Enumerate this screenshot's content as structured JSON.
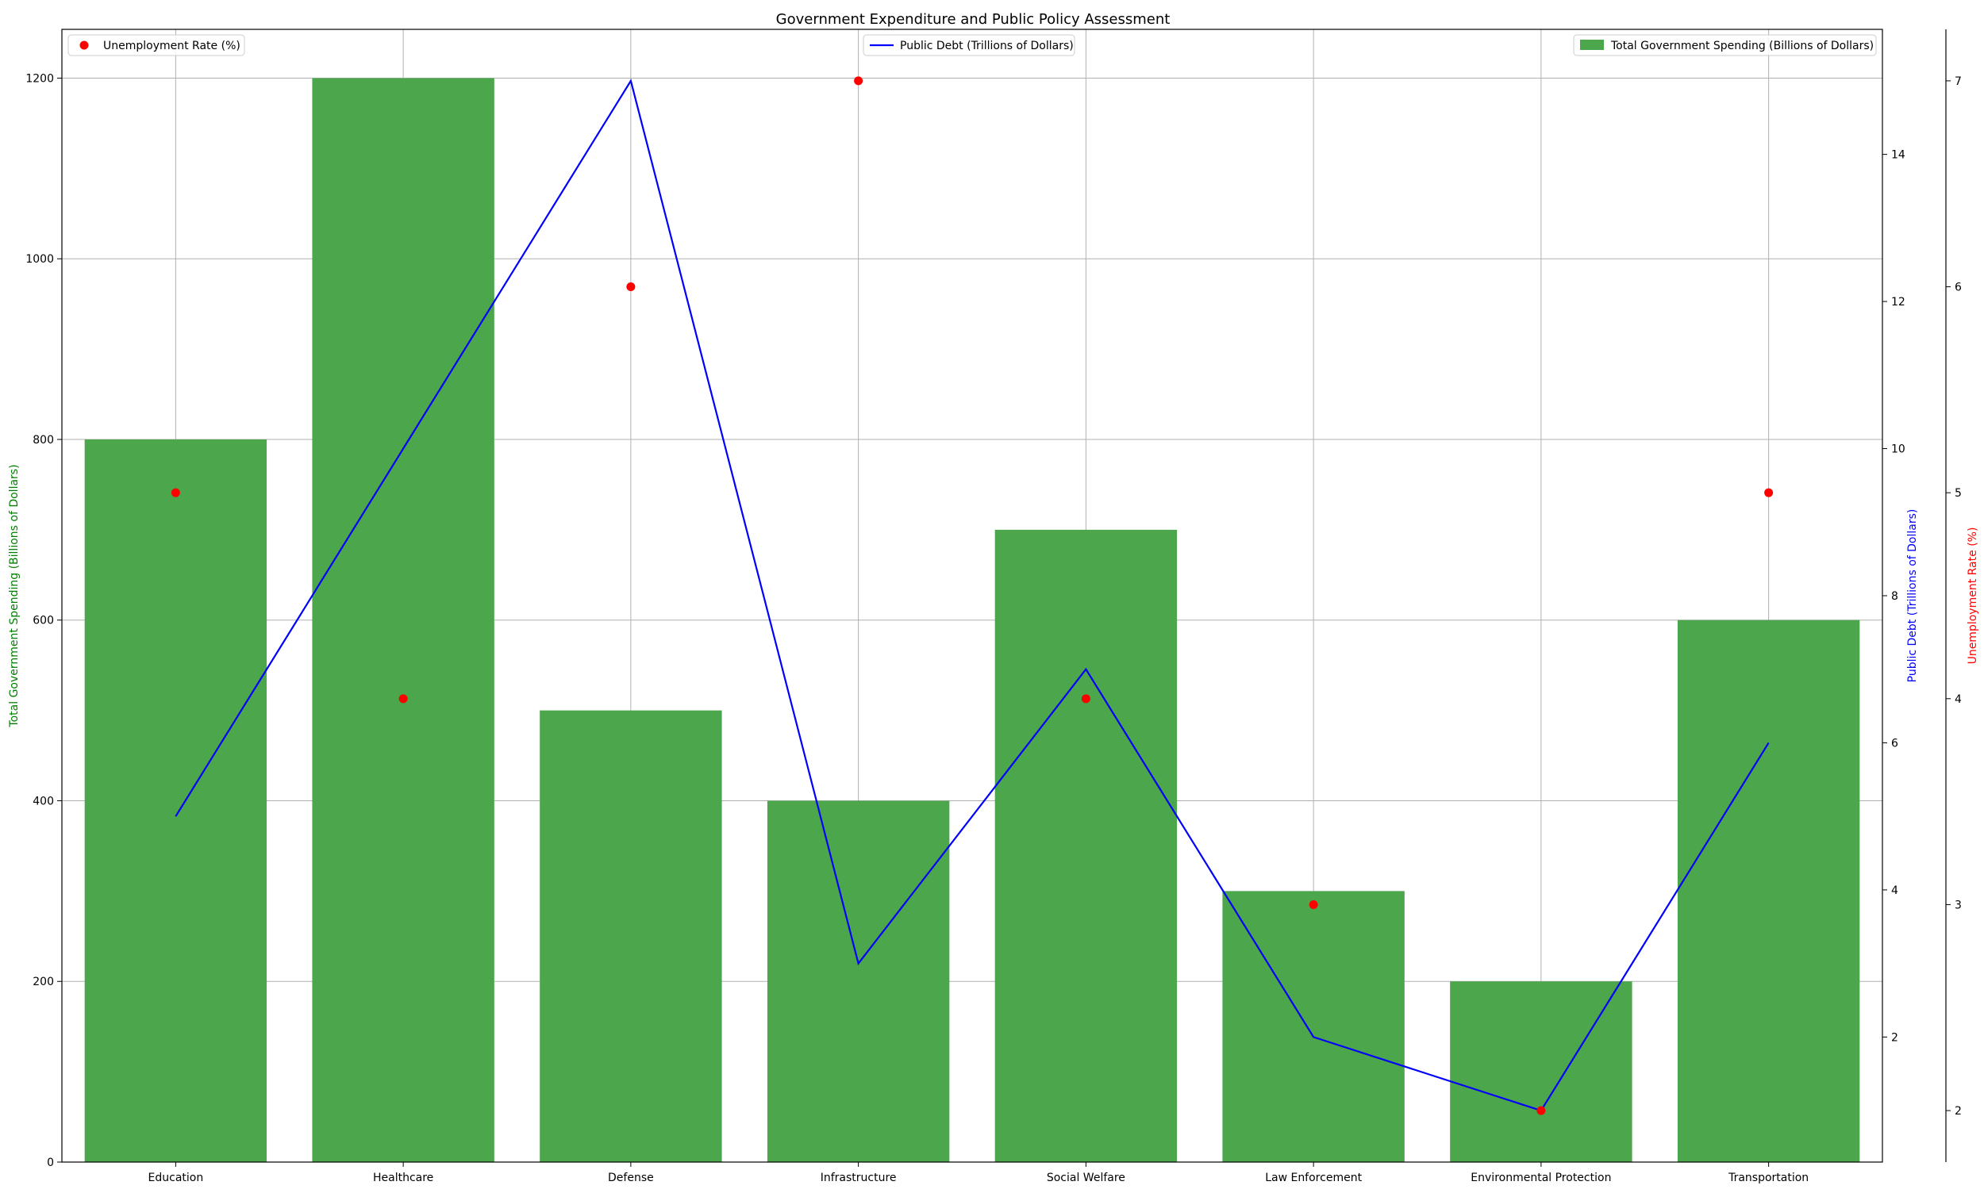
{
  "chart_data": {
    "type": "bar",
    "title": "Government Expenditure and Public Policy Assessment",
    "categories": [
      "Education",
      "Healthcare",
      "Defense",
      "Infrastructure",
      "Social Welfare",
      "Law Enforcement",
      "Environmental Protection",
      "Transportation"
    ],
    "series": [
      {
        "name": "Total Government Spending (Billions of Dollars)",
        "type": "bar",
        "axis": "left",
        "color": "#4ca64c",
        "values": [
          800,
          1200,
          500,
          400,
          700,
          300,
          200,
          600
        ]
      },
      {
        "name": "Public Debt (Trillions of Dollars)",
        "type": "line",
        "axis": "right",
        "color": "#0000ff",
        "values": [
          5,
          10,
          15,
          3,
          7,
          2,
          1,
          6
        ]
      },
      {
        "name": "Unemployment Rate (%)",
        "type": "scatter",
        "axis": "right2",
        "color": "#ff0000",
        "values": [
          5,
          4,
          6,
          7,
          4,
          3,
          2,
          5
        ]
      }
    ],
    "axes": {
      "left": {
        "label": "Total Government Spending (Billions of Dollars)",
        "label_color": "#008000",
        "ylim": [
          0,
          1254
        ],
        "ticks": [
          0,
          200,
          400,
          600,
          800,
          1000,
          1200
        ]
      },
      "right": {
        "label": "Public Debt (Trillions of Dollars)",
        "label_color": "#0000ff",
        "ylim": [
          0.3,
          15.7
        ],
        "ticks": [
          2,
          4,
          6,
          8,
          10,
          12,
          14
        ]
      },
      "right2": {
        "label": "Unemployment Rate (%)",
        "label_color": "#ff0000",
        "ylim": [
          1.75,
          7.25
        ],
        "ticks": [
          2,
          3,
          4,
          5,
          6,
          7
        ]
      }
    },
    "grid": true,
    "legends": [
      {
        "series": 2,
        "placement": "top-left"
      },
      {
        "series": 1,
        "placement": "top-center"
      },
      {
        "series": 0,
        "placement": "top-right"
      }
    ]
  }
}
